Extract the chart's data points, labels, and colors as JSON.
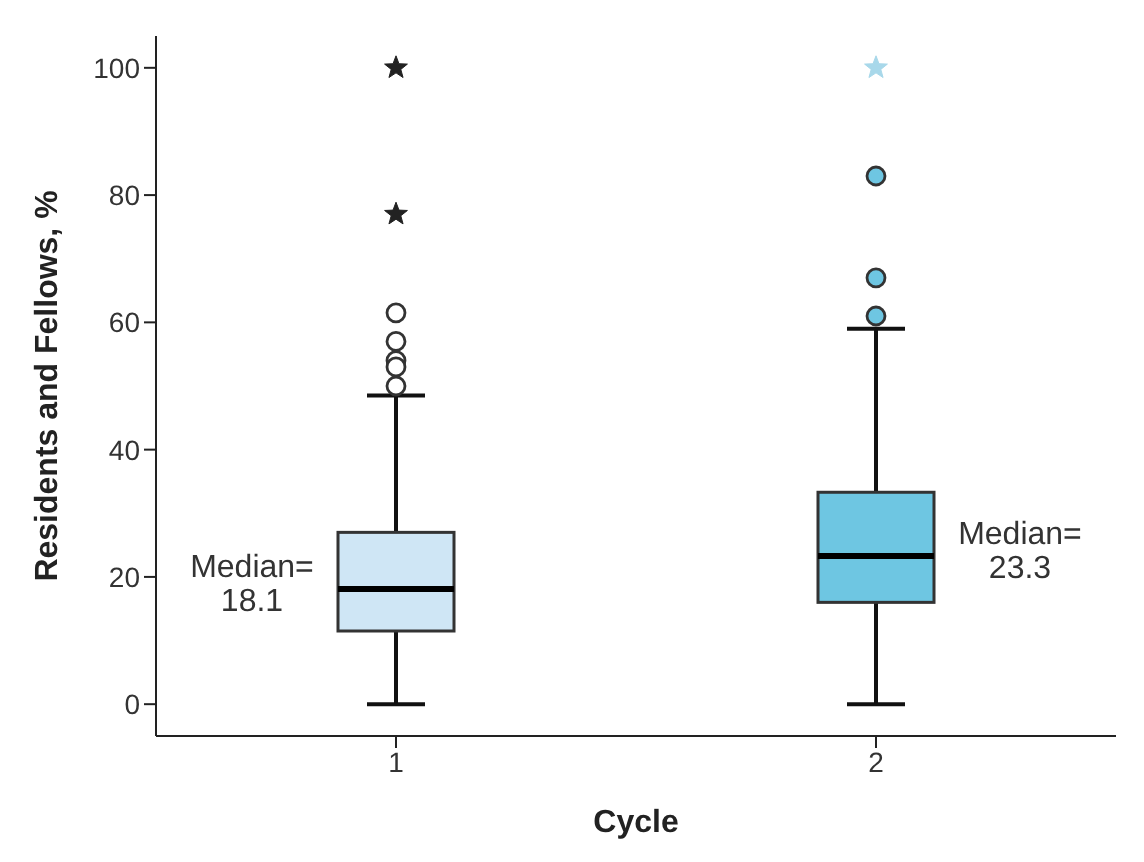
{
  "chart_data": {
    "type": "box",
    "xlabel": "Cycle",
    "ylabel": "Residents and Fellows, %",
    "categories": [
      "1",
      "2"
    ],
    "ylim": [
      -5,
      105
    ],
    "yticks": [
      0,
      20,
      40,
      60,
      80,
      100
    ],
    "grid": false,
    "legend": false,
    "series": [
      {
        "type": "box",
        "colors": [
          "#cfe6f5",
          "#6ec6e2"
        ],
        "boxes": [
          {
            "low": 0,
            "q1": 11.5,
            "median": 18.1,
            "q3": 27,
            "high": 48.5,
            "outliers": [
              61.5,
              57,
              54,
              53,
              50
            ]
          },
          {
            "low": 0,
            "q1": 16,
            "median": 23.3,
            "q3": 33.3,
            "high": 59,
            "outliers": [
              83,
              67,
              61
            ]
          }
        ]
      },
      {
        "type": "scatter",
        "marker": "star",
        "x": [
          "1",
          "1",
          "2"
        ],
        "values": [
          100,
          77,
          100
        ],
        "colors": [
          "#222222",
          "#222222",
          "#a8d8ea"
        ]
      }
    ],
    "annotations": [
      {
        "text": "Median= 18.1",
        "x": "1",
        "y": 18.1
      },
      {
        "text": "Median= 23.3",
        "x": "2",
        "y": 23.3
      }
    ]
  }
}
